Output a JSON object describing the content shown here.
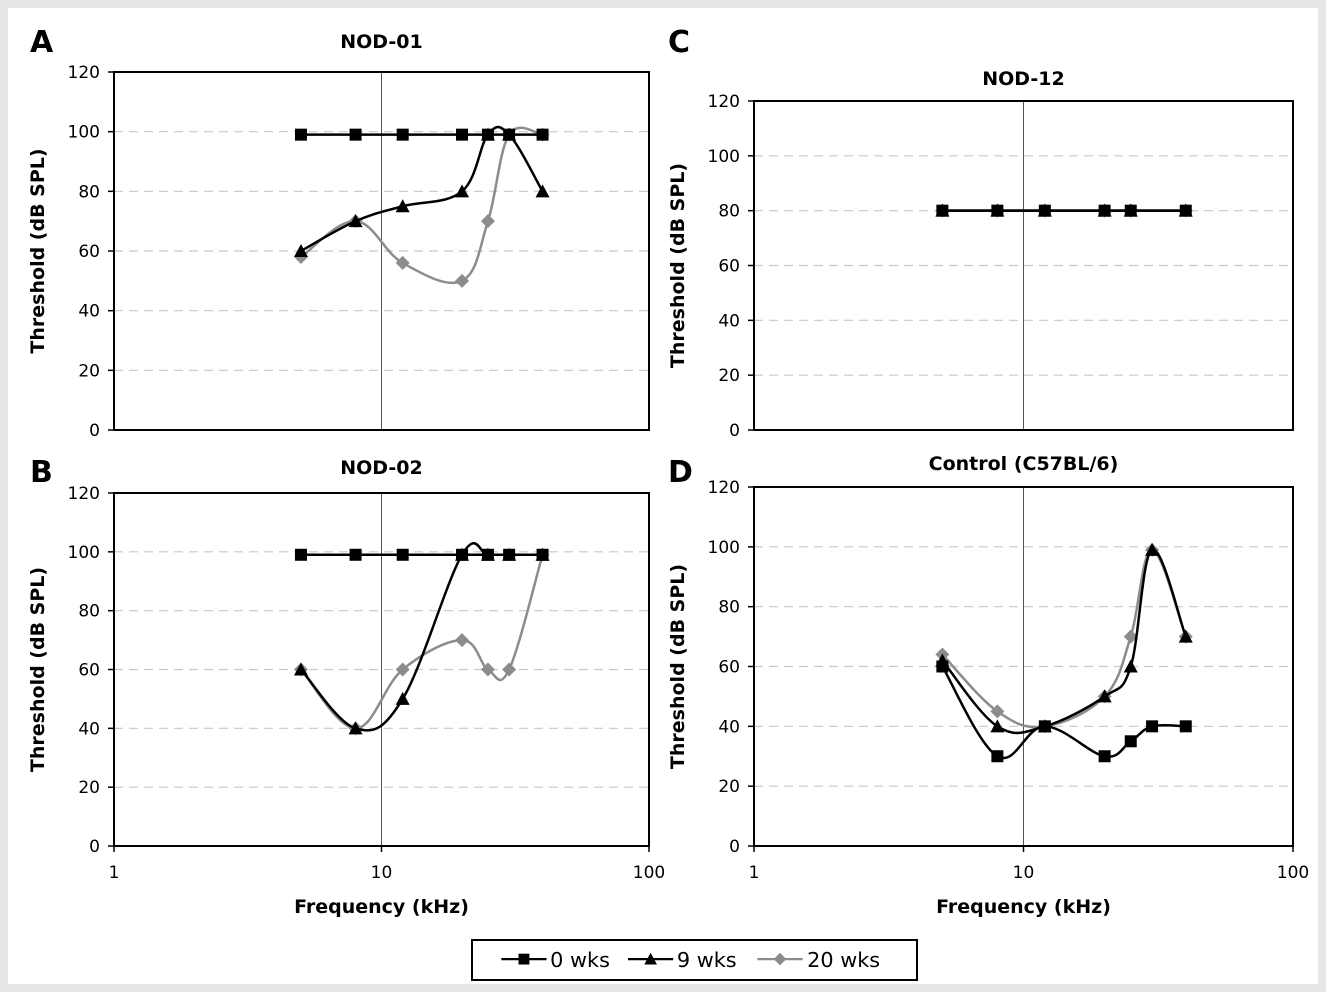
{
  "series_styles": [
    {
      "name": "0 wks",
      "color": "#000000",
      "marker": "square"
    },
    {
      "name": "9 wks",
      "color": "#000000",
      "marker": "triangle"
    },
    {
      "name": "20 wks",
      "color": "#8c8c8c",
      "marker": "diamond"
    }
  ],
  "chart_data": [
    {
      "panel": "A",
      "type": "line",
      "title": "NOD-01",
      "xlabel": "",
      "ylabel": "Threshold (dB SPL)",
      "xscale": "log",
      "xlim": [
        1,
        100
      ],
      "ylim": [
        0,
        120
      ],
      "yticks": [
        "0",
        "20",
        "40",
        "60",
        "80",
        "100",
        "120"
      ],
      "xticks": [],
      "show_xaxis_labels": false,
      "series": [
        {
          "name": "0 wks",
          "x": [
            5,
            8,
            12,
            20,
            25,
            30,
            40
          ],
          "y": [
            99,
            99,
            99,
            99,
            99,
            99,
            99
          ]
        },
        {
          "name": "9 wks",
          "x": [
            5,
            8,
            12,
            20,
            25,
            30,
            40
          ],
          "y": [
            60,
            70,
            75,
            80,
            99,
            99,
            80
          ]
        },
        {
          "name": "20 wks",
          "x": [
            5,
            8,
            12,
            20,
            25,
            30,
            40
          ],
          "y": [
            58,
            70,
            56,
            50,
            70,
            99,
            99
          ]
        }
      ]
    },
    {
      "panel": "B",
      "type": "line",
      "title": "NOD-02",
      "xlabel": "Frequency (kHz)",
      "ylabel": "Threshold (dB SPL)",
      "xscale": "log",
      "xlim": [
        1,
        100
      ],
      "ylim": [
        0,
        120
      ],
      "yticks": [
        "0",
        "20",
        "40",
        "60",
        "80",
        "100",
        "120"
      ],
      "xticks": [
        "1",
        "10",
        "100"
      ],
      "show_xaxis_labels": true,
      "series": [
        {
          "name": "0 wks",
          "x": [
            5,
            8,
            12,
            20,
            25,
            30,
            40
          ],
          "y": [
            99,
            99,
            99,
            99,
            99,
            99,
            99
          ]
        },
        {
          "name": "9 wks",
          "x": [
            5,
            8,
            12,
            20,
            25,
            30,
            40
          ],
          "y": [
            60,
            40,
            50,
            99,
            99,
            99,
            99
          ]
        },
        {
          "name": "20 wks",
          "x": [
            5,
            8,
            12,
            20,
            25,
            30,
            40
          ],
          "y": [
            60,
            40,
            60,
            70,
            60,
            60,
            99
          ]
        }
      ]
    },
    {
      "panel": "C",
      "type": "line",
      "title": "NOD-12",
      "xlabel": "",
      "ylabel": "Threshold (dB SPL)",
      "xscale": "log",
      "xlim": [
        1,
        100
      ],
      "ylim": [
        0,
        120
      ],
      "yticks": [
        "0",
        "20",
        "40",
        "60",
        "80",
        "100",
        "120"
      ],
      "xticks": [],
      "show_xaxis_labels": false,
      "series": [
        {
          "name": "0 wks",
          "x": [
            5,
            8,
            12,
            20,
            25,
            40
          ],
          "y": [
            80,
            80,
            80,
            80,
            80,
            80
          ]
        },
        {
          "name": "9 wks",
          "x": [
            5,
            8,
            12,
            20,
            25,
            40
          ],
          "y": [
            80,
            80,
            80,
            80,
            80,
            80
          ]
        },
        {
          "name": "20 wks",
          "x": [
            5,
            8,
            12,
            20,
            25,
            40
          ],
          "y": [
            80,
            80,
            80,
            80,
            80,
            80
          ]
        }
      ]
    },
    {
      "panel": "D",
      "type": "line",
      "title": "Control (C57BL/6)",
      "xlabel": "Frequency (kHz)",
      "ylabel": "Threshold (dB SPL)",
      "xscale": "log",
      "xlim": [
        1,
        100
      ],
      "ylim": [
        0,
        120
      ],
      "yticks": [
        "0",
        "20",
        "40",
        "60",
        "80",
        "100",
        "120"
      ],
      "xticks": [
        "1",
        "10",
        "100"
      ],
      "show_xaxis_labels": true,
      "series": [
        {
          "name": "0 wks",
          "x": [
            5,
            8,
            12,
            20,
            25,
            30,
            40
          ],
          "y": [
            60,
            30,
            40,
            30,
            35,
            40,
            40
          ]
        },
        {
          "name": "9 wks",
          "x": [
            5,
            8,
            12,
            20,
            25,
            30,
            40
          ],
          "y": [
            62,
            40,
            40,
            50,
            60,
            99,
            70
          ]
        },
        {
          "name": "20 wks",
          "x": [
            5,
            8,
            12,
            20,
            25,
            30,
            40
          ],
          "y": [
            64,
            45,
            40,
            50,
            70,
            99,
            70
          ]
        }
      ]
    }
  ],
  "legend": {
    "entries": [
      "0 wks",
      "9 wks",
      "20 wks"
    ],
    "placement": "bottom-center"
  }
}
